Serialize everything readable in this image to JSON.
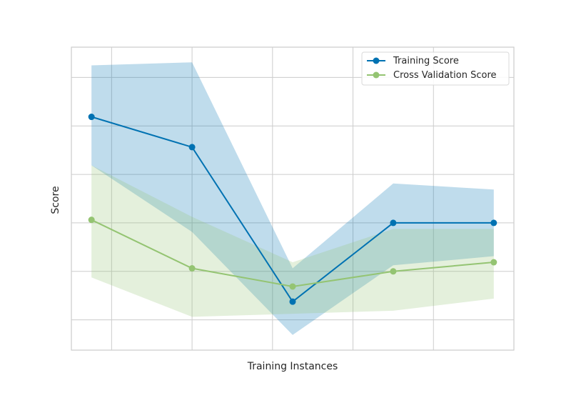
{
  "chart_data": {
    "type": "line",
    "title": "",
    "xlabel": "Training Instances",
    "ylabel": "Score",
    "x": [
      1,
      2,
      3,
      4,
      5
    ],
    "xlim": [
      0.8,
      5.2
    ],
    "ylim": [
      0.0,
      1.0
    ],
    "grid": true,
    "legend_position": "top-right",
    "series": [
      {
        "name": "Training Score",
        "color": "#0072B2",
        "marker": "circle",
        "values": [
          0.77,
          0.67,
          0.16,
          0.42,
          0.42
        ],
        "band_upper": [
          0.94,
          0.95,
          0.27,
          0.55,
          0.53
        ],
        "band_lower": [
          0.61,
          0.39,
          0.05,
          0.28,
          0.31
        ]
      },
      {
        "name": "Cross Validation Score",
        "color": "#94C472",
        "marker": "circle",
        "values": [
          0.43,
          0.27,
          0.21,
          0.26,
          0.29
        ],
        "band_upper": [
          0.61,
          0.44,
          0.29,
          0.4,
          0.4
        ],
        "band_lower": [
          0.24,
          0.11,
          0.12,
          0.13,
          0.17
        ]
      }
    ]
  }
}
